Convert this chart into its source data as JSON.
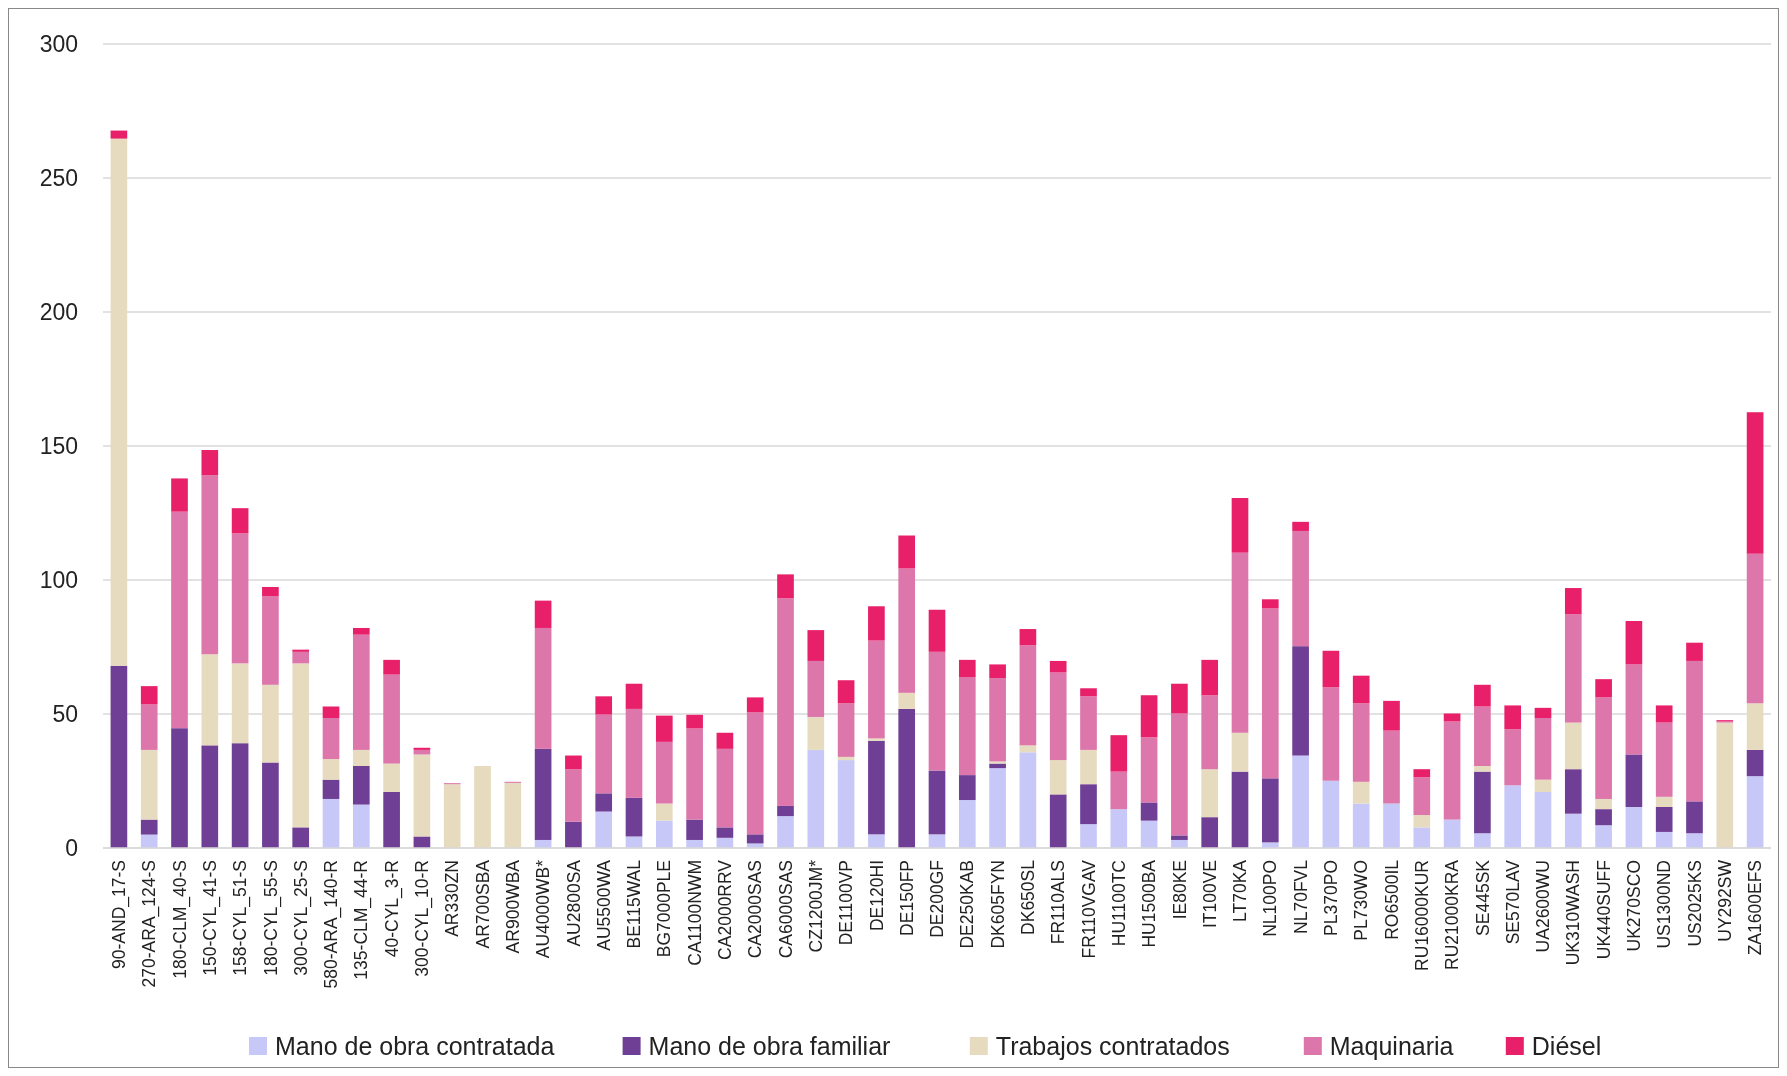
{
  "chart_data": {
    "type": "bar",
    "stacked": true,
    "grid": "y",
    "legend": "bottom",
    "categories": [
      "90-AND_17-S",
      "270-ARA_124-S",
      "180-CLM_40-S",
      "150-CYL_41-S",
      "158-CYL_51-S",
      "180-CYL_55-S",
      "300-CYL_25-S",
      "580-ARA_140-R",
      "135-CLM_44-R",
      "40-CYL_3-R",
      "300-CYL_10-R",
      "AR330ZN",
      "AR700SBA",
      "AR900WBA",
      "AU4000WB*",
      "AU2800SA",
      "AU5500WA",
      "BE115WAL",
      "BG7000PLE",
      "CA1100NWM",
      "CA2000RRV",
      "CA2000SAS",
      "CA6000SAS",
      "CZ1200JM*",
      "DE1100VP",
      "DE120HI",
      "DE150FP",
      "DE200GF",
      "DE250KAB",
      "DK605FYN",
      "DK650SL",
      "FR110ALS",
      "FR110VGAV",
      "HU1100TC",
      "HU1500BA",
      "IE80KE",
      "IT100VE",
      "LT70KA",
      "NL100PO",
      "NL70FVL",
      "PL370PO",
      "PL730WO",
      "RO6500IL",
      "RU16000KUR",
      "RU21000KRA",
      "SE445SK",
      "SE570LAV",
      "UA2600WU",
      "UK310WASH",
      "UK440SUFF",
      "UK270SCO",
      "US1300ND",
      "US2025KS",
      "UY292SW",
      "ZA1600EFS"
    ],
    "ylim": [
      0,
      300
    ],
    "yticks": [
      0,
      50,
      100,
      150,
      200,
      250,
      300
    ],
    "series": [
      {
        "name": "Mano de obra contratada",
        "color": "#c8c8f8",
        "values": [
          0,
          5,
          0,
          0,
          0,
          0,
          0,
          18.3,
          16.2,
          0,
          0,
          0,
          0,
          0,
          3,
          0,
          13.6,
          4.3,
          10.2,
          3,
          3.8,
          1.7,
          11.9,
          36.6,
          32.8,
          5.1,
          0,
          5.1,
          17.9,
          29.8,
          35.7,
          0,
          8.9,
          14.5,
          10.2,
          3,
          0,
          0,
          2.1,
          34.5,
          25.1,
          16.6,
          16.6,
          7.7,
          10.6,
          5.5,
          23.4,
          20.9,
          12.8,
          8.5,
          15.3,
          6,
          5.5,
          0,
          26.8
        ]
      },
      {
        "name": "Mano de obra familiar",
        "color": "#6f3f96",
        "values": [
          68,
          5.6,
          44.7,
          38.3,
          39.1,
          31.9,
          7.7,
          7.2,
          14.4,
          20.9,
          4.3,
          0,
          0,
          0,
          34,
          9.8,
          6.8,
          14.4,
          0,
          7.6,
          3.9,
          3.4,
          3.8,
          0,
          0,
          34.9,
          51.9,
          23.8,
          9.3,
          1.7,
          0,
          20,
          14.9,
          0,
          6.8,
          1.7,
          11.5,
          28.5,
          23.9,
          40.8,
          0,
          0,
          0,
          0,
          0,
          23,
          0,
          0,
          16.6,
          6,
          19.6,
          9.3,
          11.9,
          0,
          9.8
        ]
      },
      {
        "name": "Trabajos contratados",
        "color": "#e6dbbf",
        "values": [
          196.7,
          26,
          0,
          34,
          29.8,
          29,
          61.2,
          7.7,
          6,
          10.6,
          30.6,
          23.8,
          30.6,
          24.3,
          0,
          0,
          0,
          0,
          6.4,
          null,
          0,
          0,
          0,
          12.3,
          1.2,
          0.9,
          6,
          0,
          0,
          0.8,
          2.6,
          12.8,
          12.8,
          0,
          0,
          0,
          17.9,
          14.5,
          0,
          0,
          0,
          8.1,
          0,
          4.6,
          0,
          2.1,
          null,
          4.6,
          17.4,
          3.8,
          0,
          3.8,
          0,
          46.8,
          17.4
        ]
      },
      {
        "name": "Maquinaria",
        "color": "#dc76ab",
        "values": [
          0,
          17,
          80.8,
          66.8,
          48.5,
          33.1,
          4.3,
          15.3,
          43,
          33.2,
          1.7,
          0.4,
          0,
          0.4,
          45.1,
          19.6,
          29.4,
          33.2,
          23,
          34,
          29.3,
          45.5,
          77.5,
          20.9,
          20,
          36.5,
          46.4,
          44.3,
          36.6,
          31.1,
          37.4,
          32.7,
          20,
          14,
          24.3,
          45.5,
          27.6,
          67.2,
          63.4,
          43,
          34.9,
          29.3,
          27.2,
          14.1,
          36.6,
          22.2,
          20.9,
          23,
          40.4,
          37.9,
          33.6,
          27.7,
          52.4,
          0.4,
          55.8
        ]
      },
      {
        "name": "Diésel",
        "color": "#e8206a",
        "values": [
          3,
          6.8,
          12.4,
          9.4,
          9.4,
          3.4,
          0.8,
          4.3,
          2.5,
          5.5,
          0.8,
          0,
          0,
          0,
          10.2,
          5.1,
          6.8,
          9.4,
          9.8,
          5.1,
          6,
          5.6,
          8.9,
          11.5,
          8.6,
          12.8,
          12.3,
          15.7,
          6.4,
          5.1,
          6,
          4.3,
          3,
          13.6,
          15.7,
          11.1,
          13.2,
          20.4,
          3.4,
          3.4,
          13.6,
          10.3,
          11.1,
          3,
          3,
          8.1,
          8.9,
          3.8,
          9.8,
          6.8,
          16.2,
          6.4,
          6.8,
          0.5,
          52.8
        ]
      }
    ]
  }
}
